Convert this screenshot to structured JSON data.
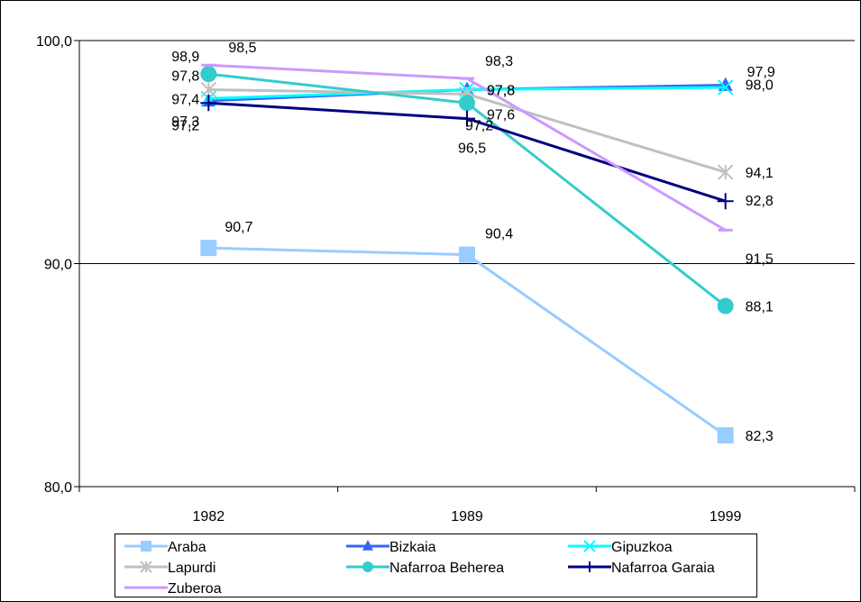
{
  "chart_data": {
    "type": "line",
    "title": "",
    "xlabel": "",
    "ylabel": "",
    "categories": [
      "1982",
      "1989",
      "1999"
    ],
    "ylim": [
      80,
      100
    ],
    "yticks": [
      80,
      90,
      100
    ],
    "ytick_labels": [
      "80,0",
      "90,0",
      "100,0"
    ],
    "grid": "horizontal",
    "legend_position": "bottom",
    "series": [
      {
        "name": "Araba",
        "color": "#99ccff",
        "marker": "square",
        "values": [
          90.7,
          90.4,
          82.3
        ],
        "labels": [
          "90,7",
          "90,4",
          "82,3"
        ]
      },
      {
        "name": "Bizkaia",
        "color": "#3366ff",
        "marker": "triangle",
        "values": [
          97.3,
          97.8,
          98.0
        ],
        "labels": [
          "97,3",
          "97,8",
          "98,0"
        ]
      },
      {
        "name": "Gipuzkoa",
        "color": "#00ffff",
        "marker": "x",
        "values": [
          97.4,
          97.8,
          97.9
        ],
        "labels": [
          "97,4",
          "97,8",
          "97,9"
        ]
      },
      {
        "name": "Lapurdi",
        "color": "#c0c0c0",
        "marker": "asterisk",
        "values": [
          97.8,
          97.6,
          94.1
        ],
        "labels": [
          "97,8",
          "97,6",
          "94,1"
        ]
      },
      {
        "name": "Nafarroa Beherea",
        "color": "#33cccc",
        "marker": "circle",
        "values": [
          98.5,
          97.2,
          88.1
        ],
        "labels": [
          "98,5",
          "97,2",
          "88,1"
        ]
      },
      {
        "name": "Nafarroa Garaia",
        "color": "#000080",
        "marker": "plus",
        "values": [
          97.2,
          96.5,
          92.8
        ],
        "labels": [
          "97,2",
          "96,5",
          "92,8"
        ]
      },
      {
        "name": "Zuberoa",
        "color": "#cc99ff",
        "marker": "dash",
        "values": [
          98.9,
          98.3,
          91.5
        ],
        "labels": [
          "98,9",
          "98,3",
          "91,5"
        ]
      }
    ]
  }
}
